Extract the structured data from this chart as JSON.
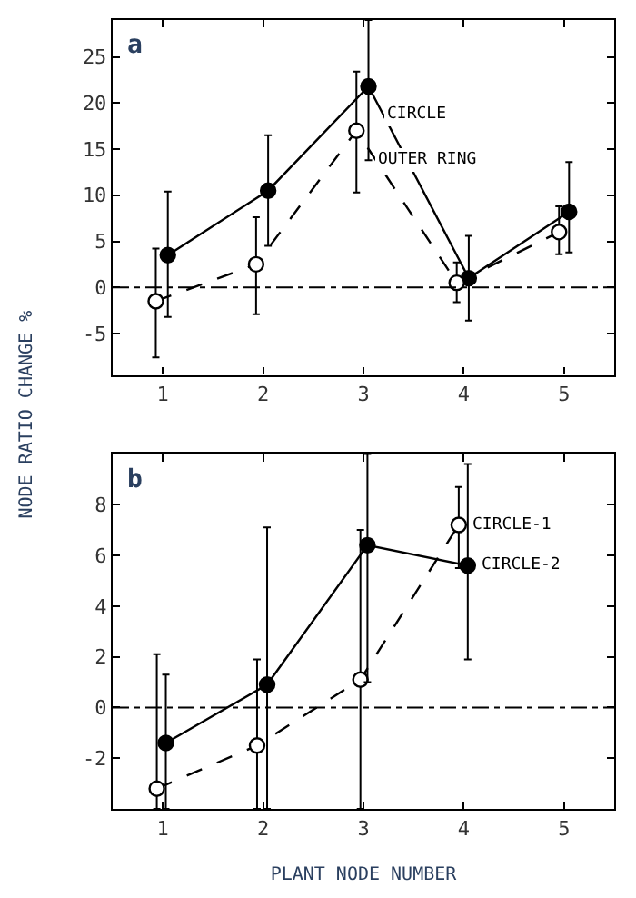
{
  "chart_data": [
    {
      "type": "line",
      "title": "a",
      "ylabel": "NODE RATIO CHANGE %",
      "xlim": [
        0.5,
        5.5
      ],
      "xticks": [
        1,
        2,
        3,
        4,
        5
      ],
      "ylim": [
        -9.5,
        29
      ],
      "yticks": [
        -5,
        0,
        5,
        10,
        15,
        20,
        25
      ],
      "grid": false,
      "legend": "right",
      "marker": "circle",
      "ref_lines": [
        {
          "axis": "y",
          "value": 0,
          "line_style": "dashdot"
        }
      ],
      "series": [
        {
          "name": "CIRCLE",
          "color": "#000000",
          "line_style": "solid",
          "x": [
            1.05,
            2.05,
            3.05,
            4.05,
            5.05
          ],
          "values": [
            3.5,
            10.5,
            21.8,
            1.0,
            8.2
          ],
          "errors": [
            [
              -3.2,
              10.4
            ],
            [
              4.5,
              16.5
            ],
            [
              13.8,
              29
            ],
            [
              -3.6,
              5.6
            ],
            [
              3.8,
              13.6
            ]
          ]
        },
        {
          "name": "OUTER RING",
          "color": "#000000",
          "line_style": "dashed",
          "x": [
            0.93,
            1.93,
            2.93,
            3.93,
            4.95
          ],
          "values": [
            -1.5,
            2.5,
            17.0,
            0.5,
            6.0
          ],
          "errors": [
            [
              -7.6,
              4.2
            ],
            [
              -2.9,
              7.6
            ],
            [
              10.3,
              23.4
            ],
            [
              -1.6,
              2.7
            ],
            [
              3.6,
              8.8
            ]
          ]
        }
      ]
    },
    {
      "type": "line",
      "title": "b",
      "xlabel": "PLANT NODE NUMBER",
      "xlim": [
        0.5,
        5.5
      ],
      "xticks": [
        1,
        2,
        3,
        4,
        5
      ],
      "ylim": [
        -4,
        10
      ],
      "yticks": [
        -2,
        0,
        2,
        4,
        6,
        8
      ],
      "grid": false,
      "legend": "right",
      "marker": "circle",
      "ref_lines": [
        {
          "axis": "y",
          "value": 0,
          "line_style": "dashdot"
        }
      ],
      "series": [
        {
          "name": "CIRCLE-1",
          "color": "#000000",
          "line_style": "dashed",
          "x": [
            0.94,
            1.94,
            2.97,
            3.95
          ],
          "values": [
            -3.2,
            -1.5,
            1.1,
            7.2
          ],
          "errors": [
            [
              -4,
              2.1
            ],
            [
              -4,
              1.9
            ],
            [
              -4,
              7.0
            ],
            [
              5.5,
              8.7
            ]
          ]
        },
        {
          "name": "CIRCLE-2",
          "color": "#000000",
          "line_style": "solid",
          "x": [
            1.03,
            2.04,
            3.04,
            4.04
          ],
          "values": [
            -1.4,
            0.9,
            6.4,
            5.6
          ],
          "errors": [
            [
              -4,
              1.3
            ],
            [
              -4,
              7.1
            ],
            [
              1.0,
              10
            ],
            [
              1.9,
              9.6
            ]
          ]
        }
      ]
    }
  ]
}
